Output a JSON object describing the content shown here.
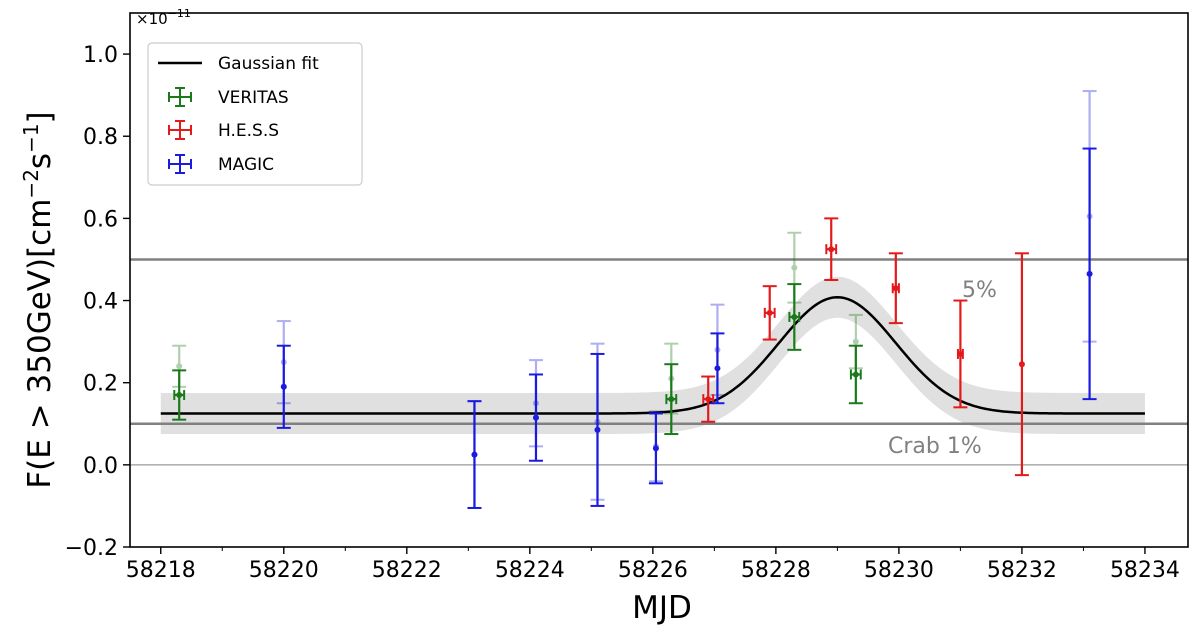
{
  "chart_data": {
    "type": "scatter",
    "xlabel": "MJD",
    "ylabel_main": "F(E > 350GeV)[cm",
    "ylabel_sup1": "−2",
    "ylabel_mid": "s",
    "ylabel_sup2": "−1",
    "ylabel_end": "]",
    "y_scale_base": "×10",
    "y_scale_exp": "−11",
    "xlim": [
      58217.5,
      58234.7
    ],
    "ylim": [
      -0.2,
      1.1
    ],
    "xticks": [
      58218,
      58220,
      58222,
      58224,
      58226,
      58228,
      58230,
      58232,
      58234
    ],
    "yticks": [
      -0.2,
      0.0,
      0.2,
      0.4,
      0.6,
      0.8,
      1.0
    ],
    "xtick_labels": [
      "58218",
      "58220",
      "58222",
      "58224",
      "58226",
      "58228",
      "58230",
      "58232",
      "58234"
    ],
    "ytick_labels": [
      "−0.2",
      "0.0",
      "0.2",
      "0.4",
      "0.6",
      "0.8",
      "1.0"
    ],
    "legend": {
      "placement": "top-left",
      "entries": [
        "Gaussian fit",
        "VERITAS",
        "H.E.S.S",
        "MAGIC"
      ]
    },
    "reference_lines": [
      {
        "label": "5%",
        "y": 0.5,
        "color": "#808080"
      },
      {
        "label": "Crab 1%",
        "y": 0.1,
        "color": "#808080"
      }
    ],
    "zero_line": 0.0,
    "gaussian_fit": {
      "name": "Gaussian fit",
      "color": "#000000",
      "baseline": 0.125,
      "amplitude": 0.283,
      "center": 58229.0,
      "sigma": 0.95,
      "x_range": [
        58218,
        58234
      ],
      "band_halfwidth": 0.05,
      "band_color": "#e0e0e0"
    },
    "series": [
      {
        "name": "VERITAS",
        "color": "#1a7a1a",
        "points": [
          {
            "x": 58218.3,
            "y": 0.17,
            "yerr": 0.06,
            "xerr": 0.08
          },
          {
            "x": 58226.3,
            "y": 0.16,
            "yerr": 0.085,
            "xerr": 0.08
          },
          {
            "x": 58228.3,
            "y": 0.36,
            "yerr": 0.08,
            "xerr": 0.08
          },
          {
            "x": 58229.3,
            "y": 0.22,
            "yerr": 0.07,
            "xerr": 0.08
          }
        ],
        "faded_points": [
          {
            "x": 58218.3,
            "y": 0.24,
            "yerr": 0.05
          },
          {
            "x": 58226.3,
            "y": 0.21,
            "yerr": 0.085
          },
          {
            "x": 58228.3,
            "y": 0.48,
            "yerr": 0.085
          },
          {
            "x": 58229.3,
            "y": 0.3,
            "yerr": 0.065
          }
        ]
      },
      {
        "name": "H.E.S.S",
        "color": "#e41a1a",
        "points": [
          {
            "x": 58226.9,
            "y": 0.16,
            "yerr": 0.055,
            "xerr": 0.08
          },
          {
            "x": 58227.9,
            "y": 0.37,
            "yerr": 0.065,
            "xerr": 0.08
          },
          {
            "x": 58228.9,
            "y": 0.525,
            "yerr": 0.075,
            "xerr": 0.08
          },
          {
            "x": 58229.95,
            "y": 0.43,
            "yerr": 0.085,
            "xerr": 0.05
          },
          {
            "x": 58231.0,
            "y": 0.27,
            "yerr": 0.13,
            "xerr": 0.04
          },
          {
            "x": 58232.0,
            "y": 0.245,
            "yerr": 0.27,
            "xerr": 0.0
          }
        ]
      },
      {
        "name": "MAGIC",
        "color": "#1a1ae0",
        "points": [
          {
            "x": 58220.0,
            "y": 0.19,
            "yerr": 0.1,
            "xerr": 0.0
          },
          {
            "x": 58223.1,
            "y": 0.025,
            "yerr": 0.13,
            "xerr": 0.0
          },
          {
            "x": 58224.1,
            "y": 0.115,
            "yerr": 0.105,
            "xerr": 0.0
          },
          {
            "x": 58225.1,
            "y": 0.085,
            "yerr": 0.185,
            "xerr": 0.0
          },
          {
            "x": 58226.05,
            "y": 0.04,
            "yerr": 0.085,
            "xerr": 0.0
          },
          {
            "x": 58227.05,
            "y": 0.235,
            "yerr": 0.085,
            "xerr": 0.0
          },
          {
            "x": 58233.1,
            "y": 0.465,
            "yerr": 0.305,
            "xerr": 0.0
          }
        ],
        "faded_points": [
          {
            "x": 58220.0,
            "y": 0.25,
            "yerr": 0.1
          },
          {
            "x": 58223.1,
            "y": 0.025,
            "yerr": 0.13
          },
          {
            "x": 58224.1,
            "y": 0.15,
            "yerr": 0.105
          },
          {
            "x": 58225.1,
            "y": 0.105,
            "yerr": 0.19
          },
          {
            "x": 58226.05,
            "y": 0.045,
            "yerr": 0.085
          },
          {
            "x": 58227.05,
            "y": 0.28,
            "yerr": 0.11
          },
          {
            "x": 58233.1,
            "y": 0.605,
            "yerr": 0.305
          }
        ]
      }
    ]
  }
}
